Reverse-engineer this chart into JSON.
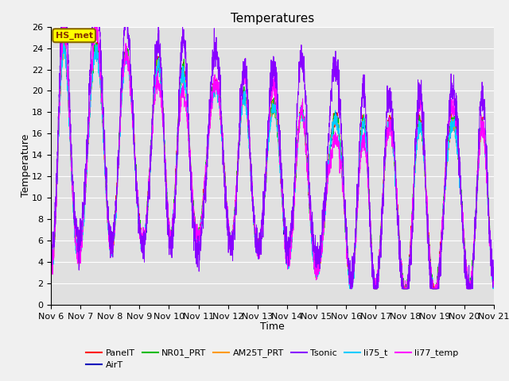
{
  "title": "Temperatures",
  "xlabel": "Time",
  "ylabel": "Temperature",
  "xlim": [
    0,
    15
  ],
  "ylim": [
    0,
    26
  ],
  "yticks": [
    0,
    2,
    4,
    6,
    8,
    10,
    12,
    14,
    16,
    18,
    20,
    22,
    24,
    26
  ],
  "xtick_labels": [
    "Nov 6",
    "Nov 7",
    "Nov 8",
    "Nov 9",
    "Nov 10",
    "Nov 11",
    "Nov 12",
    "Nov 13",
    "Nov 14",
    "Nov 15",
    "Nov 16",
    "Nov 17",
    "Nov 18",
    "Nov 19",
    "Nov 20",
    "Nov 21"
  ],
  "series_colors": {
    "PanelT": "#ff0000",
    "AirT": "#0000bb",
    "NR01_PRT": "#00bb00",
    "AM25T_PRT": "#ff9900",
    "Tsonic": "#8800ff",
    "li75_t": "#00ccff",
    "li77_temp": "#ff00ff"
  },
  "annotation_text": "HS_met",
  "annotation_box_color": "#ffff00",
  "annotation_box_edge": "#886600",
  "annotation_text_color": "#883300",
  "plot_bg_color": "#e0e0e0",
  "fig_bg_color": "#f0f0f0",
  "grid_color": "#ffffff",
  "n_points": 3000,
  "seed": 7,
  "title_fontsize": 11,
  "axis_label_fontsize": 9,
  "tick_fontsize": 8,
  "legend_fontsize": 8
}
